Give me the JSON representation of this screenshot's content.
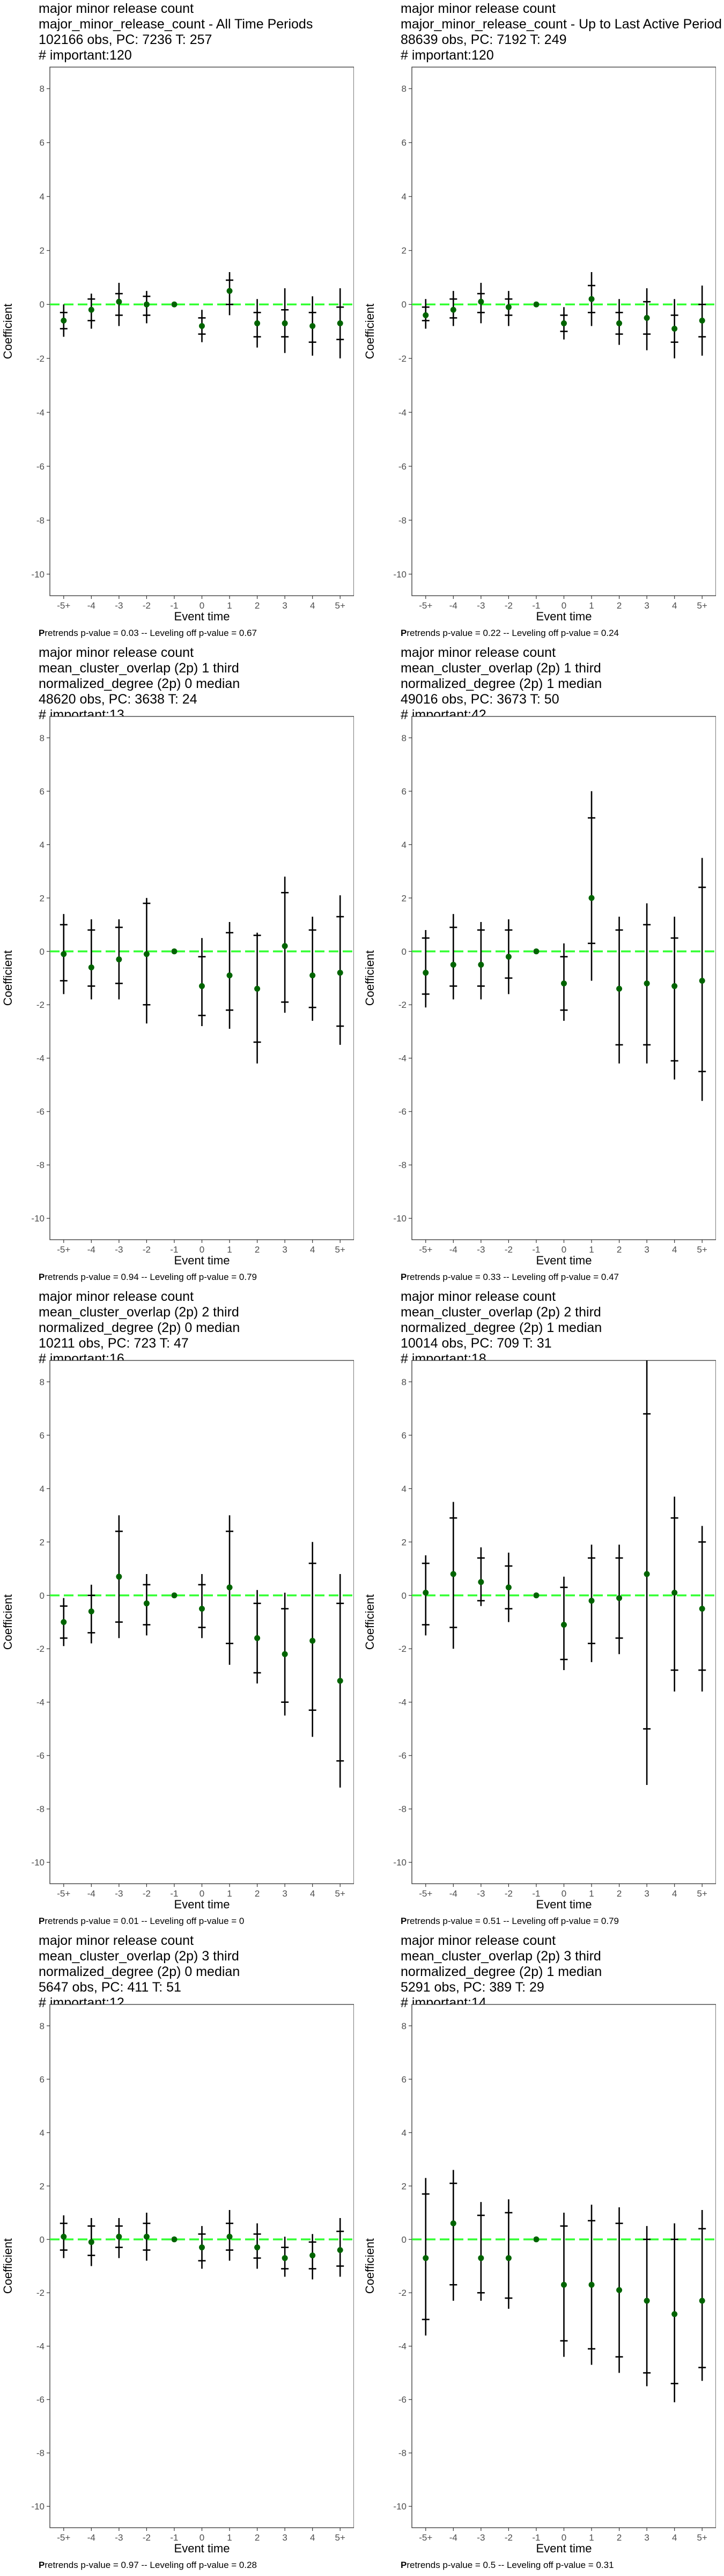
{
  "chart_data": [
    {
      "type": "errorbar",
      "title": [
        "major minor release count",
        "major_minor_release_count - All Time Periods",
        "102166 obs, PC: 7236 T: 257",
        "# important:120"
      ],
      "xlabel": "Event time",
      "ylabel": "Coefficient",
      "categories": [
        "-5+",
        "-4",
        "-3",
        "-2",
        "-1",
        "0",
        "1",
        "2",
        "3",
        "4",
        "5+"
      ],
      "yticks": [
        "-10",
        "-8",
        "-6",
        "-4",
        "-2",
        "0",
        "2",
        "4",
        "6",
        "8"
      ],
      "ylim": [
        -10.8,
        8.8
      ],
      "estimates": [
        -0.6,
        -0.2,
        0.1,
        0.0,
        0.0,
        -0.8,
        0.5,
        -0.7,
        -0.7,
        -0.8,
        -0.7
      ],
      "ci_outer": [
        [
          -1.2,
          0.0
        ],
        [
          -0.9,
          0.4
        ],
        [
          -0.8,
          0.8
        ],
        [
          -0.7,
          0.5
        ],
        null,
        [
          -1.4,
          -0.2
        ],
        [
          -0.4,
          1.2
        ],
        [
          -1.6,
          0.2
        ],
        [
          -1.8,
          0.6
        ],
        [
          -1.9,
          0.3
        ],
        [
          -2.0,
          0.6
        ]
      ],
      "ci_inner": [
        [
          -0.9,
          -0.3
        ],
        [
          -0.6,
          0.2
        ],
        [
          -0.4,
          0.4
        ],
        [
          -0.4,
          0.3
        ],
        null,
        [
          -1.1,
          -0.5
        ],
        [
          0.0,
          0.9
        ],
        [
          -1.2,
          -0.3
        ],
        [
          -1.2,
          -0.2
        ],
        [
          -1.4,
          -0.3
        ],
        [
          -1.3,
          -0.1
        ]
      ],
      "footer": {
        "bold": "P",
        "text": "retrends p-value = 0.03 -- Leveling off p-value = 0.67"
      }
    },
    {
      "type": "errorbar",
      "title": [
        "major minor release count",
        "major_minor_release_count - Up to Last Active Period",
        "88639 obs, PC: 7192 T: 249",
        "# important:120"
      ],
      "xlabel": "Event time",
      "ylabel": "Coefficient",
      "categories": [
        "-5+",
        "-4",
        "-3",
        "-2",
        "-1",
        "0",
        "1",
        "2",
        "3",
        "4",
        "5+"
      ],
      "yticks": [
        "-10",
        "-8",
        "-6",
        "-4",
        "-2",
        "0",
        "2",
        "4",
        "6",
        "8"
      ],
      "ylim": [
        -10.8,
        8.8
      ],
      "estimates": [
        -0.4,
        -0.2,
        0.1,
        -0.1,
        0.0,
        -0.7,
        0.2,
        -0.7,
        -0.5,
        -0.9,
        -0.6
      ],
      "ci_outer": [
        [
          -0.9,
          0.2
        ],
        [
          -0.8,
          0.5
        ],
        [
          -0.7,
          0.8
        ],
        [
          -0.8,
          0.5
        ],
        null,
        [
          -1.3,
          -0.1
        ],
        [
          -0.8,
          1.2
        ],
        [
          -1.5,
          0.2
        ],
        [
          -1.7,
          0.6
        ],
        [
          -2.0,
          0.2
        ],
        [
          -1.9,
          0.7
        ]
      ],
      "ci_inner": [
        [
          -0.6,
          -0.1
        ],
        [
          -0.5,
          0.2
        ],
        [
          -0.3,
          0.4
        ],
        [
          -0.4,
          0.2
        ],
        null,
        [
          -1.0,
          -0.4
        ],
        [
          -0.3,
          0.7
        ],
        [
          -1.1,
          -0.3
        ],
        [
          -1.1,
          0.1
        ],
        [
          -1.4,
          -0.4
        ],
        [
          -1.2,
          0.0
        ]
      ],
      "footer": {
        "bold": "P",
        "text": "retrends p-value = 0.22 -- Leveling off p-value = 0.24"
      }
    },
    {
      "type": "errorbar",
      "title": [
        "major minor release count",
        "mean_cluster_overlap (2p) 1 third",
        "normalized_degree (2p) 0 median",
        "48620 obs, PC: 3638 T: 24",
        "# important:13"
      ],
      "xlabel": "Event time",
      "ylabel": "Coefficient",
      "categories": [
        "-5+",
        "-4",
        "-3",
        "-2",
        "-1",
        "0",
        "1",
        "2",
        "3",
        "4",
        "5+"
      ],
      "yticks": [
        "-10",
        "-8",
        "-6",
        "-4",
        "-2",
        "0",
        "2",
        "4",
        "6",
        "8"
      ],
      "ylim": [
        -10.8,
        8.8
      ],
      "estimates": [
        -0.1,
        -0.6,
        -0.3,
        -0.1,
        0.0,
        -1.3,
        -0.9,
        -1.4,
        0.2,
        -0.9,
        -0.8
      ],
      "ci_outer": [
        [
          -1.6,
          1.4
        ],
        [
          -1.8,
          1.2
        ],
        [
          -1.8,
          1.2
        ],
        [
          -2.7,
          2.0
        ],
        null,
        [
          -2.8,
          0.5
        ],
        [
          -2.9,
          1.1
        ],
        [
          -4.2,
          0.7
        ],
        [
          -2.3,
          2.8
        ],
        [
          -2.6,
          1.3
        ],
        [
          -3.5,
          2.1
        ]
      ],
      "ci_inner": [
        [
          -1.1,
          1.0
        ],
        [
          -1.3,
          0.8
        ],
        [
          -1.2,
          0.9
        ],
        [
          -2.0,
          1.8
        ],
        null,
        [
          -2.4,
          -0.2
        ],
        [
          -2.2,
          0.7
        ],
        [
          -3.4,
          0.6
        ],
        [
          -1.9,
          2.2
        ],
        [
          -2.1,
          0.8
        ],
        [
          -2.8,
          1.3
        ]
      ],
      "footer": {
        "bold": "P",
        "text": "retrends p-value = 0.94 -- Leveling off p-value = 0.79"
      }
    },
    {
      "type": "errorbar",
      "title": [
        "major minor release count",
        "mean_cluster_overlap (2p) 1 third",
        "normalized_degree (2p) 1 median",
        "49016 obs, PC: 3673 T: 50",
        "# important:42"
      ],
      "xlabel": "Event time",
      "ylabel": "Coefficient",
      "categories": [
        "-5+",
        "-4",
        "-3",
        "-2",
        "-1",
        "0",
        "1",
        "2",
        "3",
        "4",
        "5+"
      ],
      "yticks": [
        "-10",
        "-8",
        "-6",
        "-4",
        "-2",
        "0",
        "2",
        "4",
        "6",
        "8"
      ],
      "ylim": [
        -10.8,
        8.8
      ],
      "estimates": [
        -0.8,
        -0.5,
        -0.5,
        -0.2,
        0.0,
        -1.2,
        2.0,
        -1.4,
        -1.2,
        -1.3,
        -1.1
      ],
      "ci_outer": [
        [
          -2.1,
          0.8
        ],
        [
          -1.8,
          1.4
        ],
        [
          -1.8,
          1.1
        ],
        [
          -1.6,
          1.2
        ],
        null,
        [
          -2.6,
          0.3
        ],
        [
          -1.1,
          6.0
        ],
        [
          -4.2,
          1.3
        ],
        [
          -4.2,
          1.8
        ],
        [
          -4.8,
          1.3
        ],
        [
          -5.6,
          3.5
        ]
      ],
      "ci_inner": [
        [
          -1.6,
          0.5
        ],
        [
          -1.3,
          0.9
        ],
        [
          -1.3,
          0.8
        ],
        [
          -1.0,
          0.8
        ],
        null,
        [
          -2.2,
          -0.2
        ],
        [
          0.3,
          5.0
        ],
        [
          -3.5,
          0.8
        ],
        [
          -3.5,
          1.0
        ],
        [
          -4.1,
          0.5
        ],
        [
          -4.5,
          2.4
        ]
      ],
      "footer": {
        "bold": "P",
        "text": "retrends p-value = 0.33 -- Leveling off p-value = 0.47"
      }
    },
    {
      "type": "errorbar",
      "title": [
        "major minor release count",
        "mean_cluster_overlap (2p) 2 third",
        "normalized_degree (2p) 0 median",
        "10211 obs, PC: 723 T: 47",
        "# important:16"
      ],
      "xlabel": "Event time",
      "ylabel": "Coefficient",
      "categories": [
        "-5+",
        "-4",
        "-3",
        "-2",
        "-1",
        "0",
        "1",
        "2",
        "3",
        "4",
        "5+"
      ],
      "yticks": [
        "-10",
        "-8",
        "-6",
        "-4",
        "-2",
        "0",
        "2",
        "4",
        "6",
        "8"
      ],
      "ylim": [
        -10.8,
        8.8
      ],
      "estimates": [
        -1.0,
        -0.6,
        0.7,
        -0.3,
        0.0,
        -0.5,
        0.3,
        -1.6,
        -2.2,
        -1.7,
        -3.2
      ],
      "ci_outer": [
        [
          -1.9,
          -0.1
        ],
        [
          -1.8,
          0.4
        ],
        [
          -1.6,
          3.0
        ],
        [
          -1.5,
          0.8
        ],
        null,
        [
          -1.6,
          0.8
        ],
        [
          -2.6,
          3.0
        ],
        [
          -3.3,
          0.2
        ],
        [
          -4.5,
          0.1
        ],
        [
          -5.3,
          2.0
        ],
        [
          -7.2,
          0.8
        ]
      ],
      "ci_inner": [
        [
          -1.6,
          -0.4
        ],
        [
          -1.4,
          0.0
        ],
        [
          -1.0,
          2.4
        ],
        [
          -1.1,
          0.4
        ],
        null,
        [
          -1.2,
          0.4
        ],
        [
          -1.8,
          2.4
        ],
        [
          -2.9,
          -0.3
        ],
        [
          -4.0,
          -0.5
        ],
        [
          -4.3,
          1.2
        ],
        [
          -6.2,
          -0.3
        ]
      ],
      "footer": {
        "bold": "P",
        "text": "retrends p-value = 0.01 -- Leveling off p-value = 0"
      }
    },
    {
      "type": "errorbar",
      "title": [
        "major minor release count",
        "mean_cluster_overlap (2p) 2 third",
        "normalized_degree (2p) 1 median",
        "10014 obs, PC: 709 T: 31",
        "# important:18"
      ],
      "xlabel": "Event time",
      "ylabel": "Coefficient",
      "categories": [
        "-5+",
        "-4",
        "-3",
        "-2",
        "-1",
        "0",
        "1",
        "2",
        "3",
        "4",
        "5+"
      ],
      "yticks": [
        "-10",
        "-8",
        "-6",
        "-4",
        "-2",
        "0",
        "2",
        "4",
        "6",
        "8"
      ],
      "ylim": [
        -10.8,
        8.8
      ],
      "estimates": [
        0.1,
        0.8,
        0.5,
        0.3,
        0.0,
        -1.1,
        -0.2,
        -0.1,
        0.8,
        0.1,
        -0.5
      ],
      "ci_outer": [
        [
          -1.5,
          1.5
        ],
        [
          -2.0,
          3.5
        ],
        [
          -0.4,
          1.8
        ],
        [
          -1.0,
          1.6
        ],
        null,
        [
          -2.8,
          0.7
        ],
        [
          -2.5,
          1.9
        ],
        [
          -2.2,
          1.9
        ],
        [
          -7.1,
          8.8
        ],
        [
          -3.6,
          3.7
        ],
        [
          -3.6,
          2.6
        ]
      ],
      "ci_inner": [
        [
          -1.1,
          1.2
        ],
        [
          -1.2,
          2.9
        ],
        [
          -0.2,
          1.4
        ],
        [
          -0.5,
          1.1
        ],
        null,
        [
          -2.4,
          0.3
        ],
        [
          -1.8,
          1.4
        ],
        [
          -1.6,
          1.4
        ],
        [
          -5.0,
          6.8
        ],
        [
          -2.8,
          2.9
        ],
        [
          -2.8,
          2.0
        ]
      ],
      "footer": {
        "bold": "P",
        "text": "retrends p-value = 0.51 -- Leveling off p-value = 0.79"
      }
    },
    {
      "type": "errorbar",
      "title": [
        "major minor release count",
        "mean_cluster_overlap (2p) 3 third",
        "normalized_degree (2p) 0 median",
        "5647 obs, PC: 411 T: 51",
        "# important:12"
      ],
      "xlabel": "Event time",
      "ylabel": "Coefficient",
      "categories": [
        "-5+",
        "-4",
        "-3",
        "-2",
        "-1",
        "0",
        "1",
        "2",
        "3",
        "4",
        "5+"
      ],
      "yticks": [
        "-10",
        "-8",
        "-6",
        "-4",
        "-2",
        "0",
        "2",
        "4",
        "6",
        "8"
      ],
      "ylim": [
        -10.8,
        8.8
      ],
      "estimates": [
        0.1,
        -0.1,
        0.1,
        0.1,
        0.0,
        -0.3,
        0.1,
        -0.3,
        -0.7,
        -0.6,
        -0.4
      ],
      "ci_outer": [
        [
          -0.7,
          0.9
        ],
        [
          -1.0,
          0.8
        ],
        [
          -0.7,
          0.8
        ],
        [
          -0.8,
          1.0
        ],
        null,
        [
          -1.1,
          0.5
        ],
        [
          -0.8,
          1.1
        ],
        [
          -1.1,
          0.6
        ],
        [
          -1.4,
          0.1
        ],
        [
          -1.5,
          0.2
        ],
        [
          -1.4,
          0.8
        ]
      ],
      "ci_inner": [
        [
          -0.4,
          0.6
        ],
        [
          -0.6,
          0.5
        ],
        [
          -0.3,
          0.5
        ],
        [
          -0.4,
          0.6
        ],
        null,
        [
          -0.8,
          0.2
        ],
        [
          -0.4,
          0.6
        ],
        [
          -0.7,
          0.2
        ],
        [
          -1.1,
          -0.3
        ],
        [
          -1.1,
          -0.1
        ],
        [
          -1.0,
          0.3
        ]
      ],
      "footer": {
        "bold": "P",
        "text": "retrends p-value = 0.97 -- Leveling off p-value = 0.28"
      }
    },
    {
      "type": "errorbar",
      "title": [
        "major minor release count",
        "mean_cluster_overlap (2p) 3 third",
        "normalized_degree (2p) 1 median",
        "5291 obs, PC: 389 T: 29",
        "# important:14"
      ],
      "xlabel": "Event time",
      "ylabel": "Coefficient",
      "categories": [
        "-5+",
        "-4",
        "-3",
        "-2",
        "-1",
        "0",
        "1",
        "2",
        "3",
        "4",
        "5+"
      ],
      "yticks": [
        "-10",
        "-8",
        "-6",
        "-4",
        "-2",
        "0",
        "2",
        "4",
        "6",
        "8"
      ],
      "ylim": [
        -10.8,
        8.8
      ],
      "estimates": [
        -0.7,
        0.6,
        -0.7,
        -0.7,
        0.0,
        -1.7,
        -1.7,
        -1.9,
        -2.3,
        -2.8,
        -2.3
      ],
      "ci_outer": [
        [
          -3.6,
          2.3
        ],
        [
          -2.3,
          2.6
        ],
        [
          -2.3,
          1.4
        ],
        [
          -2.6,
          1.5
        ],
        null,
        [
          -4.4,
          1.0
        ],
        [
          -4.7,
          1.3
        ],
        [
          -5.0,
          1.2
        ],
        [
          -5.5,
          0.5
        ],
        [
          -6.1,
          0.6
        ],
        [
          -5.3,
          1.1
        ]
      ],
      "ci_inner": [
        [
          -3.0,
          1.7
        ],
        [
          -1.7,
          2.1
        ],
        [
          -2.0,
          0.9
        ],
        [
          -2.2,
          1.0
        ],
        null,
        [
          -3.8,
          0.5
        ],
        [
          -4.1,
          0.7
        ],
        [
          -4.4,
          0.6
        ],
        [
          -5.0,
          0.0
        ],
        [
          -5.4,
          0.0
        ],
        [
          -4.8,
          0.4
        ]
      ],
      "footer": {
        "bold": "P",
        "text": "retrends p-value = 0.5 -- Leveling off p-value = 0.31"
      }
    }
  ],
  "colors": {
    "zero_line": "#33ff33",
    "estimate_point": "#006400",
    "error_bar": "#000000",
    "panel_border": "#333333",
    "tick_text": "#4d4d4d"
  }
}
